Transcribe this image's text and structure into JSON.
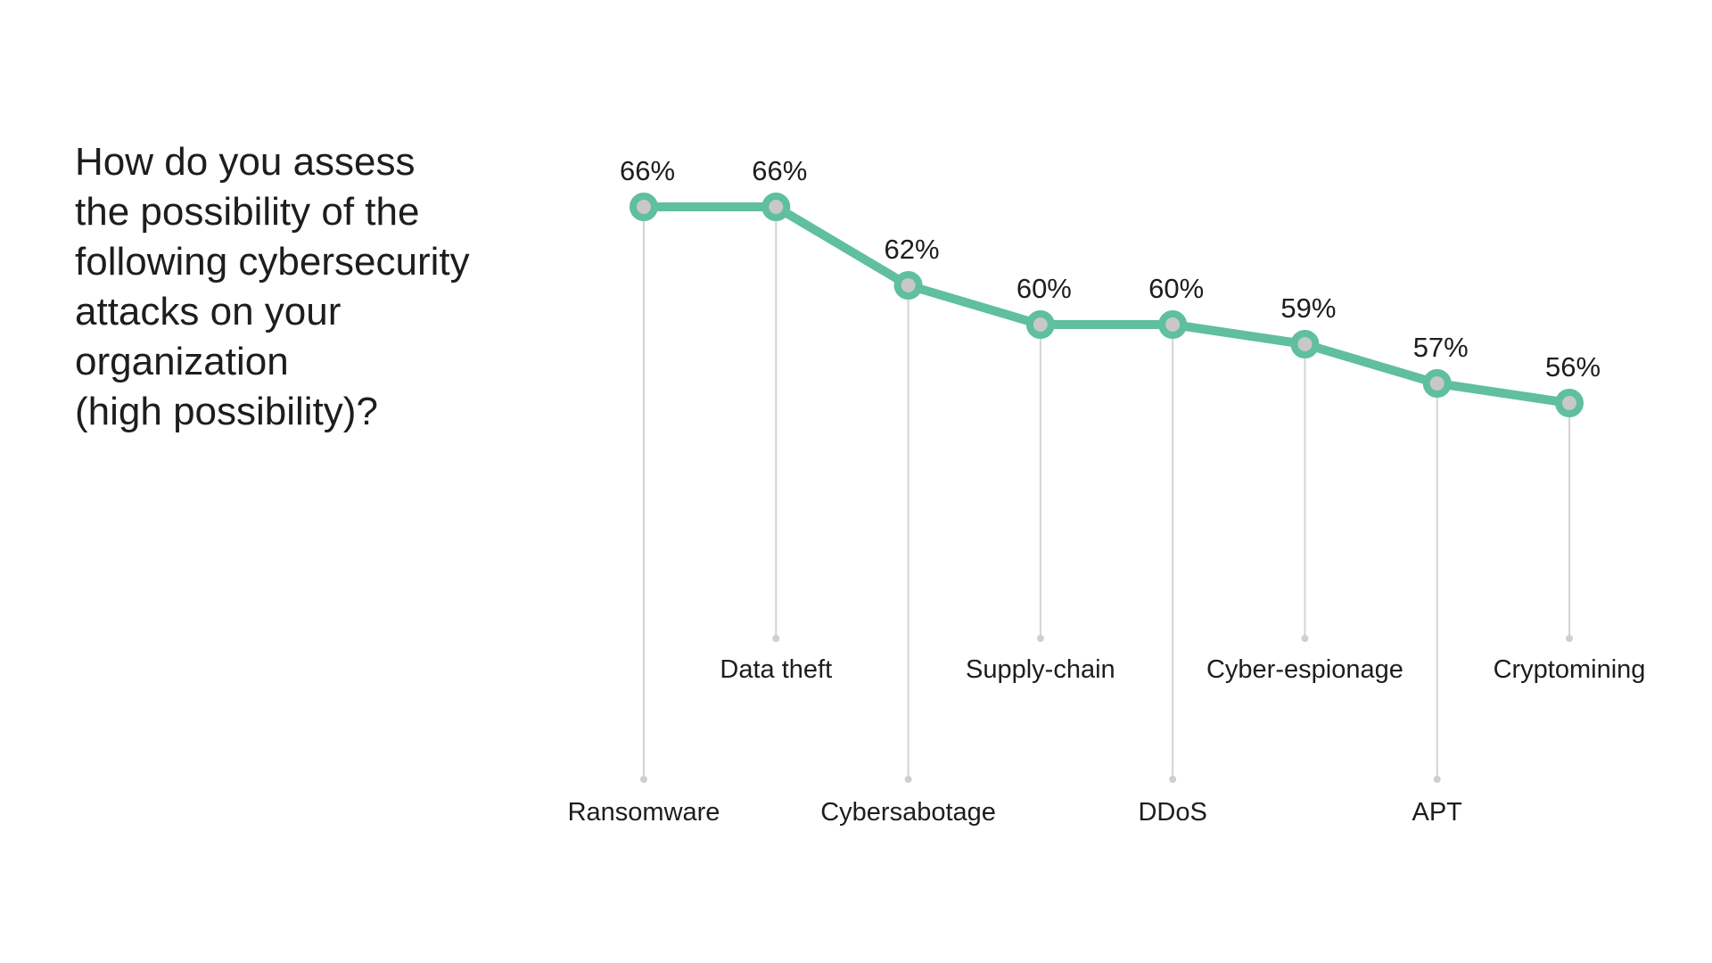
{
  "chart_data": {
    "type": "line",
    "title_lines": [
      "How do you assess",
      "the possibility of the",
      "following cybersecurity",
      "attacks on your",
      "organization",
      "(high possibility)?"
    ],
    "categories": [
      "Ransomware",
      "Data theft",
      "Cybersabotage",
      "Supply-chain",
      "DDoS",
      "Cyber-espionage",
      "APT",
      "Cryptomining"
    ],
    "values": [
      66,
      66,
      62,
      60,
      60,
      59,
      57,
      56
    ],
    "value_labels": [
      "66%",
      "66%",
      "62%",
      "60%",
      "60%",
      "59%",
      "57%",
      "56%"
    ],
    "xlabel": "",
    "ylabel": "",
    "grid": false,
    "legend": "none",
    "colors": {
      "line": "#5fbf9f",
      "marker_fill": "#c8c8c8",
      "leader": "#d4d4d4",
      "text": "#1d1d1b"
    }
  }
}
